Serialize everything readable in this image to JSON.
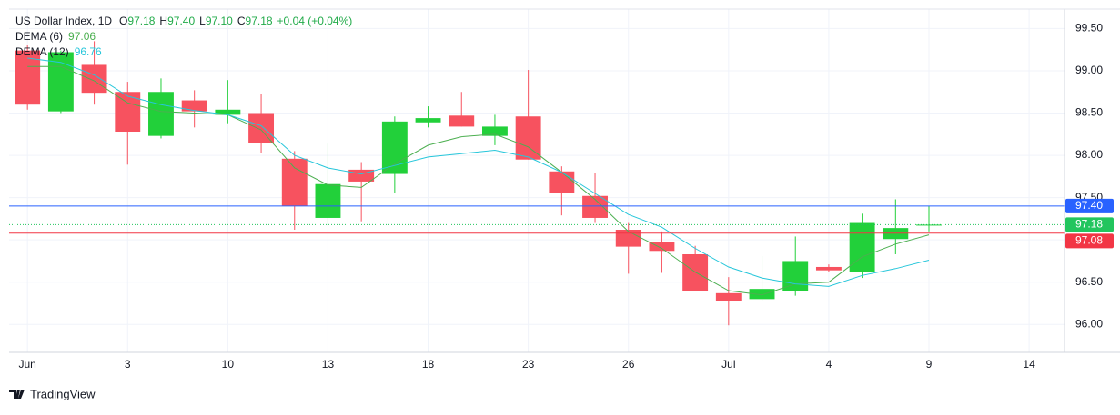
{
  "chart_data": {
    "type": "candlestick",
    "header": {
      "title": "US Dollar Index, 1D",
      "fields": [
        {
          "key": "O",
          "text": "97.18"
        },
        {
          "key": "H",
          "text": "97.40"
        },
        {
          "key": "L",
          "text": "97.10"
        },
        {
          "key": "C",
          "text": "97.18"
        }
      ],
      "change": "+0.04 (+0.04%)"
    },
    "x": [
      0,
      1,
      2,
      3,
      4,
      5,
      6,
      7,
      8,
      9,
      10,
      11,
      12,
      13,
      14,
      15,
      16,
      17,
      18,
      19,
      20,
      21,
      22,
      23,
      24,
      25,
      26,
      27
    ],
    "open": [
      99.24,
      98.52,
      99.07,
      98.75,
      98.23,
      98.65,
      98.48,
      98.5,
      97.96,
      97.26,
      97.83,
      97.78,
      98.39,
      98.47,
      98.23,
      98.46,
      97.81,
      97.52,
      97.12,
      96.98,
      96.83,
      96.37,
      96.3,
      96.4,
      96.68,
      96.62,
      97.01,
      97.18
    ],
    "high": [
      99.3,
      99.24,
      99.35,
      98.87,
      98.91,
      98.77,
      98.89,
      98.73,
      98.05,
      98.14,
      97.92,
      98.46,
      98.58,
      98.75,
      98.48,
      99.01,
      97.87,
      97.79,
      97.2,
      97.1,
      96.93,
      96.56,
      96.81,
      97.04,
      96.71,
      97.31,
      97.48,
      97.4
    ],
    "low": [
      98.54,
      98.5,
      98.6,
      97.89,
      98.2,
      98.33,
      98.38,
      98.03,
      97.12,
      97.17,
      97.22,
      97.56,
      98.33,
      98.34,
      98.12,
      97.95,
      97.29,
      97.2,
      96.6,
      96.61,
      96.39,
      95.99,
      96.28,
      96.34,
      96.62,
      96.55,
      96.83,
      97.1
    ],
    "close": [
      98.6,
      99.22,
      98.74,
      98.28,
      98.75,
      98.52,
      98.54,
      98.15,
      97.4,
      97.66,
      97.69,
      98.4,
      98.44,
      98.34,
      98.34,
      97.95,
      97.55,
      97.26,
      96.92,
      96.87,
      96.39,
      96.28,
      96.42,
      96.75,
      96.64,
      97.2,
      97.14,
      97.18
    ],
    "up_color": "#22d03a",
    "down_color": "#f7525f",
    "lines": [
      {
        "name": "DEMA (6)",
        "color": "#4caf50",
        "values": [
          99.05,
          99.05,
          98.88,
          98.62,
          98.52,
          98.5,
          98.48,
          98.3,
          97.85,
          97.65,
          97.62,
          97.9,
          98.12,
          98.22,
          98.25,
          98.1,
          97.8,
          97.48,
          97.1,
          96.9,
          96.62,
          96.4,
          96.35,
          96.48,
          96.5,
          96.8,
          96.95,
          97.06
        ]
      },
      {
        "name": "DEMA (12)",
        "color": "#26c6da",
        "values": [
          99.15,
          99.1,
          98.95,
          98.7,
          98.6,
          98.53,
          98.48,
          98.35,
          98.0,
          97.85,
          97.78,
          97.88,
          97.98,
          98.02,
          98.06,
          97.98,
          97.8,
          97.55,
          97.3,
          97.15,
          96.9,
          96.68,
          96.55,
          96.48,
          96.45,
          96.58,
          96.66,
          96.76
        ]
      }
    ],
    "price_lines": [
      {
        "value": 97.4,
        "label": "97.40",
        "color": "#2962ff",
        "dashed": false
      },
      {
        "value": 97.18,
        "label": "97.18",
        "color": "#22c55e",
        "dashed": true
      },
      {
        "value": 97.08,
        "label": "97.08",
        "color": "#f23645",
        "dashed": false
      }
    ],
    "xlim": [
      -0.55,
      31.06
    ],
    "xticks": [
      {
        "value": 0,
        "label": "Jun"
      },
      3,
      {
        "value": 6,
        "label": "10"
      },
      {
        "value": 9,
        "label": "13"
      },
      {
        "value": 12,
        "label": "18"
      },
      {
        "value": 15,
        "label": "23"
      },
      {
        "value": 18,
        "label": "26"
      },
      {
        "value": 21,
        "label": "Jul"
      },
      {
        "value": 24,
        "label": "4"
      },
      {
        "value": 27,
        "label": "9"
      },
      {
        "value": 30,
        "label": "14"
      }
    ],
    "ylim": [
      95.67,
      99.73
    ],
    "yticks": [
      {
        "value": 96,
        "label": "96.00"
      },
      {
        "value": 96.5,
        "label": "96.50"
      },
      {
        "value": 97,
        "label": "97.00"
      },
      {
        "value": 97.5,
        "label": "97.50"
      },
      {
        "value": 98,
        "label": "98.00"
      },
      {
        "value": 98.5,
        "label": "98.50"
      },
      {
        "value": 99,
        "label": "99.00"
      },
      {
        "value": 99.5,
        "label": "99.50"
      }
    ],
    "grid": true,
    "footer": "TradingView"
  }
}
